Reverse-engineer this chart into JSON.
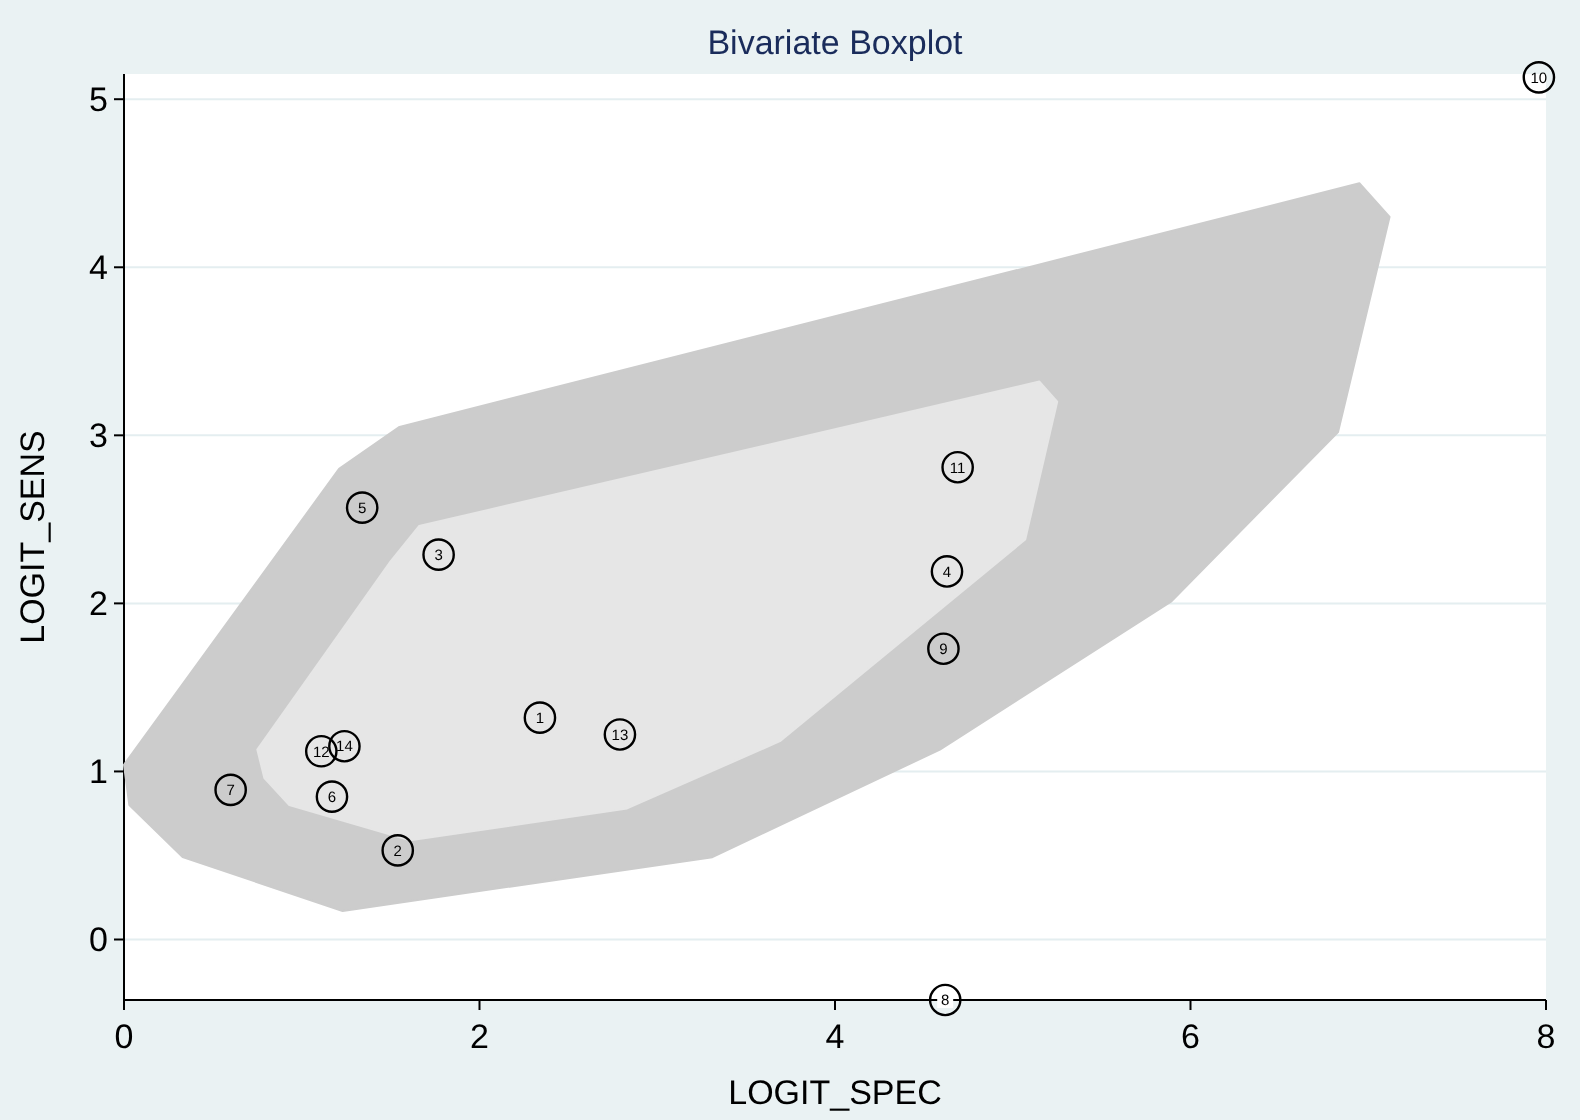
{
  "chart_data": {
    "type": "scatter",
    "title": "Bivariate Boxplot",
    "xlabel": "LOGIT_SPEC",
    "ylabel": "LOGIT_SENS",
    "xlim": [
      0,
      8
    ],
    "xticks": [
      0,
      2,
      4,
      6,
      8
    ],
    "ylim": [
      -0.36,
      5.15
    ],
    "yticks": [
      0,
      1,
      2,
      3,
      4,
      5
    ],
    "grid": "y",
    "series": [
      {
        "type": "area",
        "color": "#cccccc",
        "x": [
          0,
          0.03,
          0.33,
          1.23,
          3.31,
          4.59,
          5.89,
          6.83,
          7.12,
          6.95,
          1.55,
          1.21
        ],
        "values": [
          1.04,
          0.8,
          0.49,
          0.17,
          0.49,
          1.13,
          2.01,
          3.02,
          4.3,
          4.5,
          3.05,
          2.8
        ]
      },
      {
        "type": "area",
        "color": "#e6e6e6",
        "x": [
          0.75,
          0.79,
          0.93,
          1.61,
          2.83,
          3.69,
          5.07,
          5.25,
          5.15,
          1.66,
          1.5
        ],
        "values": [
          1.13,
          0.96,
          0.8,
          0.59,
          0.78,
          1.18,
          2.38,
          3.2,
          3.32,
          2.46,
          2.25
        ]
      },
      {
        "color": "#000000",
        "marker": "circle",
        "x": [
          2.34,
          1.54,
          1.77,
          4.63,
          1.34,
          1.17,
          0.6,
          4.62,
          4.61,
          7.96,
          4.69,
          1.11,
          2.79,
          1.24
        ],
        "values": [
          1.32,
          0.53,
          2.29,
          2.19,
          2.57,
          0.85,
          0.89,
          -0.36,
          1.73,
          5.13,
          2.81,
          1.12,
          1.22,
          1.15
        ]
      }
    ],
    "annotations": [
      {
        "text": "1",
        "x": 2.34,
        "y": 1.32
      },
      {
        "text": "2",
        "x": 1.54,
        "y": 0.53
      },
      {
        "text": "3",
        "x": 1.77,
        "y": 2.29
      },
      {
        "text": "4",
        "x": 4.63,
        "y": 2.19
      },
      {
        "text": "5",
        "x": 1.34,
        "y": 2.57
      },
      {
        "text": "6",
        "x": 1.17,
        "y": 0.85
      },
      {
        "text": "7",
        "x": 0.6,
        "y": 0.89
      },
      {
        "text": "8",
        "x": 4.62,
        "y": -0.36
      },
      {
        "text": "9",
        "x": 4.61,
        "y": 1.73
      },
      {
        "text": "10",
        "x": 7.96,
        "y": 5.13
      },
      {
        "text": "11",
        "x": 4.69,
        "y": 2.81
      },
      {
        "text": "12",
        "x": 1.11,
        "y": 1.12
      },
      {
        "text": "13",
        "x": 2.79,
        "y": 1.22
      },
      {
        "text": "14",
        "x": 1.24,
        "y": 1.15
      }
    ]
  }
}
